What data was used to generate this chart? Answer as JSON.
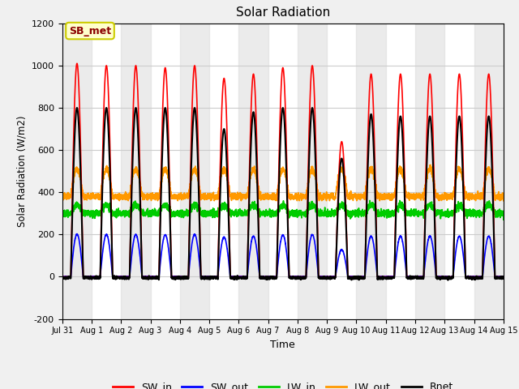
{
  "title": "Solar Radiation",
  "xlabel": "Time",
  "ylabel": "Solar Radiation (W/m2)",
  "ylim": [
    -200,
    1200
  ],
  "background_color": "#f0f0f0",
  "plot_bg_color": "#f0f0f0",
  "annotation_text": "SB_met",
  "annotation_color": "#8B0000",
  "annotation_bg": "#ffffcc",
  "annotation_border": "#cccc00",
  "series": {
    "SW_in": {
      "color": "#ff0000",
      "lw": 1.2
    },
    "SW_out": {
      "color": "#0000ff",
      "lw": 1.2
    },
    "LW_in": {
      "color": "#00cc00",
      "lw": 1.2
    },
    "LW_out": {
      "color": "#ff9900",
      "lw": 1.2
    },
    "Rnet": {
      "color": "#000000",
      "lw": 1.5
    }
  },
  "xtick_labels": [
    "Jul 31",
    "Aug 1",
    "Aug 2",
    "Aug 3",
    "Aug 4",
    "Aug 5",
    "Aug 6",
    "Aug 7",
    "Aug 8",
    "Aug 9",
    "Aug 10",
    "Aug 11",
    "Aug 12",
    "Aug 13",
    "Aug 14",
    "Aug 15"
  ],
  "ytick_values": [
    -200,
    0,
    200,
    400,
    600,
    800,
    1000,
    1200
  ],
  "n_days": 15,
  "sw_in_peaks": [
    1010,
    1000,
    1000,
    990,
    1000,
    940,
    960,
    990,
    1000,
    640,
    960,
    960,
    960,
    960,
    960
  ],
  "rnet_peaks": [
    800,
    800,
    800,
    800,
    800,
    700,
    780,
    800,
    800,
    560,
    770,
    760,
    760,
    760,
    760
  ]
}
